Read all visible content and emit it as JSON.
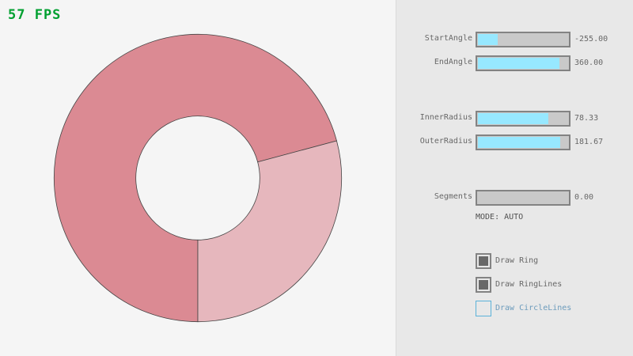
{
  "fps": "57 FPS",
  "ring": {
    "inner_radius": 78.33,
    "outer_radius": 181.67,
    "color_main": "#db8a93",
    "color_light": "#e6b7bd"
  },
  "sliders": [
    {
      "label": "StartAngle",
      "value": "-255.00",
      "fill": 0.217
    },
    {
      "label": "EndAngle",
      "value": "360.00",
      "fill": 0.9
    },
    {
      "label": "InnerRadius",
      "value": "78.33",
      "fill": 0.783
    },
    {
      "label": "OuterRadius",
      "value": "181.67",
      "fill": 0.908
    },
    {
      "label": "Segments",
      "value": "0.00",
      "fill": 0
    }
  ],
  "mode": "MODE: AUTO",
  "checkboxes": [
    {
      "label": "Draw Ring",
      "checked": true
    },
    {
      "label": "Draw RingLines",
      "checked": true
    },
    {
      "label": "Draw CircleLines",
      "checked": false
    }
  ]
}
